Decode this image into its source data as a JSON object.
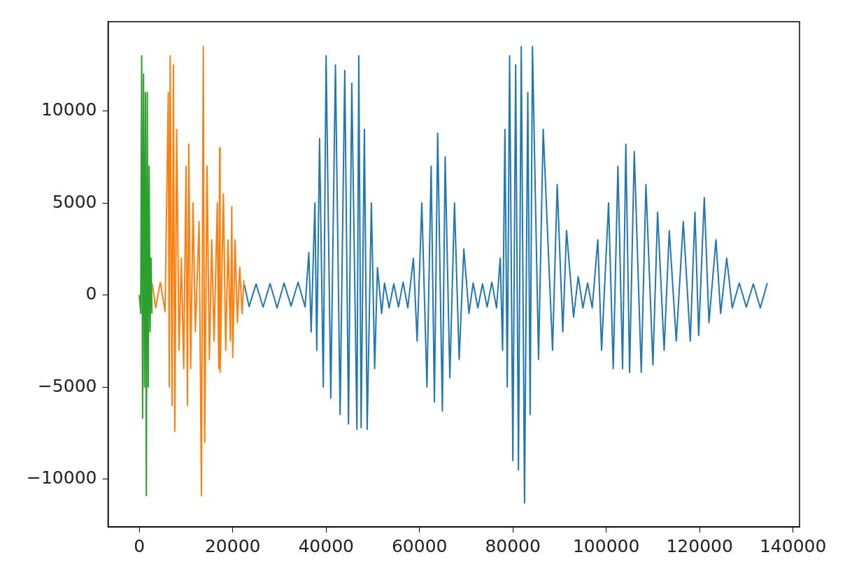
{
  "chart_data": {
    "type": "line",
    "xlim": [
      -6700,
      141400
    ],
    "ylim": [
      -12600,
      14850
    ],
    "xticks": [
      0,
      20000,
      40000,
      60000,
      80000,
      100000,
      120000,
      140000
    ],
    "yticks": [
      -10000,
      -5000,
      0,
      5000,
      10000
    ],
    "grid": false,
    "legend": false,
    "marker": "none",
    "line_style": "solid",
    "series": [
      {
        "color": "#1f77b4",
        "x": [
          22500,
          23500,
          25000,
          26500,
          28000,
          29500,
          31000,
          32500,
          34000,
          35500,
          36300,
          36800,
          37600,
          38000,
          38600,
          39400,
          40000,
          41000,
          42000,
          43000,
          44000,
          44800,
          45500,
          46600,
          47000,
          47500,
          48200,
          48800,
          49700,
          50400,
          51000,
          51900,
          52500,
          53500,
          54500,
          55500,
          56500,
          57500,
          58700,
          59500,
          60500,
          61600,
          62500,
          63200,
          63900,
          64900,
          65500,
          66500,
          67500,
          68500,
          69500,
          70600,
          71500,
          72500,
          73500,
          74500,
          75500,
          76500,
          77300,
          77800,
          78300,
          78800,
          79300,
          80000,
          80600,
          81200,
          81800,
          82500,
          83200,
          83700,
          84200,
          85500,
          86500,
          88500,
          89500,
          90700,
          91500,
          93000,
          94000,
          95000,
          96000,
          97000,
          98200,
          99000,
          100500,
          101500,
          102500,
          103500,
          104200,
          105000,
          106000,
          107500,
          108500,
          110000,
          111000,
          112400,
          113500,
          115000,
          116500,
          118000,
          119000,
          119800,
          121000,
          122000,
          123500,
          124500,
          125800,
          127000,
          128500,
          130000,
          131500,
          133000,
          134500
        ],
        "values": [
          560,
          -630,
          600,
          -650,
          620,
          -700,
          650,
          -600,
          700,
          -650,
          2300,
          -2000,
          5000,
          -3000,
          8500,
          -5000,
          13000,
          -5600,
          12500,
          -6500,
          12200,
          -7000,
          11500,
          -7300,
          13000,
          -7200,
          9000,
          -7300,
          5000,
          -4000,
          1500,
          -1000,
          650,
          -700,
          600,
          -650,
          700,
          -700,
          2000,
          -2500,
          5000,
          -5000,
          7000,
          -5800,
          8800,
          -6300,
          7500,
          -4500,
          5000,
          -3500,
          2500,
          -1000,
          650,
          -700,
          600,
          -650,
          700,
          -700,
          2000,
          -3000,
          9000,
          -5000,
          13000,
          -9000,
          12500,
          -9500,
          13500,
          -11300,
          11000,
          -6500,
          13500,
          -3500,
          9000,
          -3000,
          6000,
          -2000,
          3500,
          -1200,
          1000,
          -700,
          650,
          -700,
          3000,
          -3000,
          5000,
          -4000,
          7000,
          -4000,
          8200,
          -4200,
          7800,
          -4200,
          6000,
          -3800,
          4500,
          -3000,
          3500,
          -2500,
          4000,
          -2500,
          4500,
          -2200,
          5300,
          -1500,
          3000,
          -1000,
          2000,
          -700,
          650,
          -650,
          600,
          -700,
          650
        ]
      },
      {
        "color": "#ff7f0e",
        "x": [
          2800,
          3500,
          4500,
          5500,
          6200,
          6400,
          6600,
          7000,
          7300,
          7600,
          8000,
          8500,
          9000,
          9500,
          10000,
          10300,
          10600,
          11000,
          11500,
          12000,
          12800,
          13300,
          13700,
          14000,
          14500,
          15000,
          15500,
          16000,
          16700,
          17000,
          17200,
          17300,
          18000,
          18500,
          19000,
          19500,
          19800,
          20000,
          20500,
          21000,
          21500,
          22000,
          22400
        ],
        "values": [
          600,
          -700,
          700,
          -900,
          11000,
          -5000,
          13000,
          -6000,
          12500,
          -7400,
          9000,
          -3000,
          2000,
          -4000,
          7000,
          -6000,
          8200,
          -4000,
          5000,
          -2000,
          4000,
          -10900,
          13500,
          -8000,
          7000,
          -3500,
          3000,
          -2500,
          5000,
          -4000,
          8000,
          -4200,
          5500,
          -3000,
          3000,
          -2500,
          4800,
          -3400,
          3000,
          -1500,
          1500,
          -1000,
          800
        ]
      },
      {
        "color": "#2ca02c",
        "x": [
          0,
          300,
          500,
          700,
          900,
          1100,
          1300,
          1500,
          1700,
          1900,
          2100,
          2300,
          2500,
          2700
        ],
        "values": [
          0,
          -1000,
          13000,
          -6700,
          12000,
          -5000,
          11000,
          -10900,
          11000,
          -5000,
          7000,
          -2000,
          2000,
          -1000
        ]
      }
    ]
  }
}
